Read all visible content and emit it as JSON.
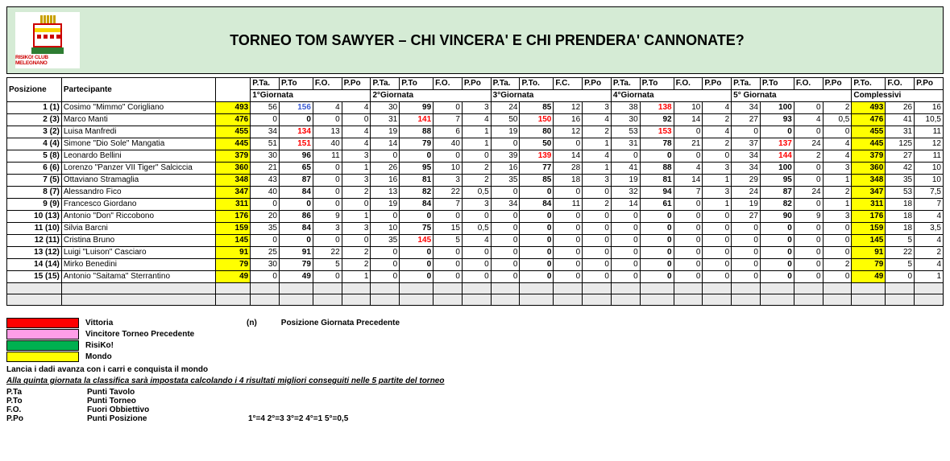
{
  "header": {
    "logo_text": "RISIKO! CLUB MELEGNANO",
    "title": "TORNEO TOM SAWYER – CHI VINCERA' E CHI PRENDERA' CANNONATE?"
  },
  "table": {
    "headers": {
      "posizione": "Posizione",
      "partecipante": "Partecipante",
      "pta": "P.Ta.",
      "pto": "P.To",
      "pto_dot": "P.To.",
      "fo": "F.O.",
      "fc": "F.C.",
      "ppo": "P.Po"
    },
    "groups": [
      "1°Giornata",
      "2°Giornata",
      "3°Giornata",
      "4°Giornata",
      "5° Giornata",
      "Complessivi"
    ],
    "rows": [
      {
        "pos": "1 (1)",
        "name": "Cosimo \"Mimmo\" Corigliano",
        "pta": "493",
        "g1": [
          "56",
          "156",
          "4",
          "4"
        ],
        "g1pto_cls": "blue",
        "g2": [
          "30",
          "99",
          "0",
          "3"
        ],
        "g3": [
          "24",
          "85",
          "12",
          "3"
        ],
        "g4": [
          "38",
          "138",
          "10",
          "4"
        ],
        "g4pto_cls": "red",
        "g5": [
          "34",
          "100",
          "0",
          "2"
        ],
        "tot": [
          "493",
          "26",
          "16"
        ]
      },
      {
        "pos": "2 (3)",
        "name": "Marco Manti",
        "pta": "476",
        "g1": [
          "0",
          "0",
          "0",
          "0"
        ],
        "g2": [
          "31",
          "141",
          "7",
          "4"
        ],
        "g2pto_cls": "red",
        "g3": [
          "50",
          "150",
          "16",
          "4"
        ],
        "g3pto_cls": "red",
        "g4": [
          "30",
          "92",
          "14",
          "2"
        ],
        "g5": [
          "27",
          "93",
          "4",
          "0,5"
        ],
        "tot": [
          "476",
          "41",
          "10,5"
        ]
      },
      {
        "pos": "3 (2)",
        "name": "Luisa Manfredi",
        "pta": "455",
        "g1": [
          "34",
          "134",
          "13",
          "4"
        ],
        "g1pto_cls": "red",
        "g2": [
          "19",
          "88",
          "6",
          "1"
        ],
        "g3": [
          "19",
          "80",
          "12",
          "2"
        ],
        "g4": [
          "53",
          "153",
          "0",
          "4"
        ],
        "g4pto_cls": "red",
        "g5": [
          "0",
          "0",
          "0",
          "0"
        ],
        "tot": [
          "455",
          "31",
          "11"
        ]
      },
      {
        "pos": "4 (4)",
        "name": "Simone \"Dio Sole\" Mangatia",
        "pta": "445",
        "g1": [
          "51",
          "151",
          "40",
          "4"
        ],
        "g1pto_cls": "red",
        "g2": [
          "14",
          "79",
          "40",
          "1"
        ],
        "g3": [
          "0",
          "50",
          "0",
          "1"
        ],
        "g4": [
          "31",
          "78",
          "21",
          "2"
        ],
        "g5": [
          "37",
          "137",
          "24",
          "4"
        ],
        "g5pto_cls": "red",
        "tot": [
          "445",
          "125",
          "12"
        ]
      },
      {
        "pos": "5 (8)",
        "name": "Leonardo Bellini",
        "pta": "379",
        "g1": [
          "30",
          "96",
          "11",
          "3"
        ],
        "g2": [
          "0",
          "0",
          "0",
          "0"
        ],
        "g3": [
          "39",
          "139",
          "14",
          "4"
        ],
        "g3pto_cls": "red",
        "g4": [
          "0",
          "0",
          "0",
          "0"
        ],
        "g5": [
          "34",
          "144",
          "2",
          "4"
        ],
        "g5pto_cls": "red",
        "tot": [
          "379",
          "27",
          "11"
        ]
      },
      {
        "pos": "6 (6)",
        "name": "Lorenzo \"Panzer VII Tiger\" Salciccia",
        "pta": "360",
        "g1": [
          "21",
          "65",
          "0",
          "1"
        ],
        "g2": [
          "26",
          "95",
          "10",
          "2"
        ],
        "g3": [
          "16",
          "77",
          "28",
          "1"
        ],
        "g4": [
          "41",
          "88",
          "4",
          "3"
        ],
        "g5": [
          "34",
          "100",
          "0",
          "3"
        ],
        "tot": [
          "360",
          "42",
          "10"
        ]
      },
      {
        "pos": "7 (5)",
        "name": "Ottaviano Stramaglia",
        "pta": "348",
        "g1": [
          "43",
          "87",
          "0",
          "3"
        ],
        "g2": [
          "16",
          "81",
          "3",
          "2"
        ],
        "g3": [
          "35",
          "85",
          "18",
          "3"
        ],
        "g4": [
          "19",
          "81",
          "14",
          "1"
        ],
        "g5": [
          "29",
          "95",
          "0",
          "1"
        ],
        "tot": [
          "348",
          "35",
          "10"
        ]
      },
      {
        "pos": "8 (7)",
        "name": "Alessandro Fico",
        "pta": "347",
        "g1": [
          "40",
          "84",
          "0",
          "2"
        ],
        "g2": [
          "13",
          "82",
          "22",
          "0,5"
        ],
        "g3": [
          "0",
          "0",
          "0",
          "0"
        ],
        "g4": [
          "32",
          "94",
          "7",
          "3"
        ],
        "g5": [
          "24",
          "87",
          "24",
          "2"
        ],
        "tot": [
          "347",
          "53",
          "7,5"
        ]
      },
      {
        "pos": "9 (9)",
        "name": "Francesco Giordano",
        "pta": "311",
        "g1": [
          "0",
          "0",
          "0",
          "0"
        ],
        "g2": [
          "19",
          "84",
          "7",
          "3"
        ],
        "g3": [
          "34",
          "84",
          "11",
          "2"
        ],
        "g4": [
          "14",
          "61",
          "0",
          "1"
        ],
        "g5": [
          "19",
          "82",
          "0",
          "1"
        ],
        "tot": [
          "311",
          "18",
          "7"
        ]
      },
      {
        "pos": "10 (13)",
        "name": "Antonio \"Don\" Riccobono",
        "pta": "176",
        "g1": [
          "20",
          "86",
          "9",
          "1"
        ],
        "g2": [
          "0",
          "0",
          "0",
          "0"
        ],
        "g3": [
          "0",
          "0",
          "0",
          "0"
        ],
        "g4": [
          "0",
          "0",
          "0",
          "0"
        ],
        "g5": [
          "27",
          "90",
          "9",
          "3"
        ],
        "tot": [
          "176",
          "18",
          "4"
        ]
      },
      {
        "pos": "11 (10)",
        "name": "Silvia Barcni",
        "pta": "159",
        "g1": [
          "35",
          "84",
          "3",
          "3"
        ],
        "g2": [
          "10",
          "75",
          "15",
          "0,5"
        ],
        "g3": [
          "0",
          "0",
          "0",
          "0"
        ],
        "g4": [
          "0",
          "0",
          "0",
          "0"
        ],
        "g5": [
          "0",
          "0",
          "0",
          "0"
        ],
        "tot": [
          "159",
          "18",
          "3,5"
        ]
      },
      {
        "pos": "12 (11)",
        "name": "Cristina Bruno",
        "pta": "145",
        "g1": [
          "0",
          "0",
          "0",
          "0"
        ],
        "g2": [
          "35",
          "145",
          "5",
          "4"
        ],
        "g2pto_cls": "red",
        "g3": [
          "0",
          "0",
          "0",
          "0"
        ],
        "g4": [
          "0",
          "0",
          "0",
          "0"
        ],
        "g5": [
          "0",
          "0",
          "0",
          "0"
        ],
        "tot": [
          "145",
          "5",
          "4"
        ]
      },
      {
        "pos": "13 (12)",
        "name": "Luigi \"Luison\" Casciaro",
        "pta": "91",
        "g1": [
          "25",
          "91",
          "22",
          "2"
        ],
        "g2": [
          "0",
          "0",
          "0",
          "0"
        ],
        "g3": [
          "0",
          "0",
          "0",
          "0"
        ],
        "g4": [
          "0",
          "0",
          "0",
          "0"
        ],
        "g5": [
          "0",
          "0",
          "0",
          "0"
        ],
        "tot": [
          "91",
          "22",
          "2"
        ]
      },
      {
        "pos": "14 (14)",
        "name": "Mirko Benedini",
        "pta": "79",
        "g1": [
          "30",
          "79",
          "5",
          "2"
        ],
        "g2": [
          "0",
          "0",
          "0",
          "0"
        ],
        "g3": [
          "0",
          "0",
          "0",
          "0"
        ],
        "g4": [
          "0",
          "0",
          "0",
          "0"
        ],
        "g5": [
          "0",
          "0",
          "0",
          "2"
        ],
        "tot": [
          "79",
          "5",
          "4"
        ]
      },
      {
        "pos": "15 (15)",
        "name": "Antonio \"Saitama\" Sterrantino",
        "pta": "49",
        "g1": [
          "0",
          "49",
          "0",
          "1"
        ],
        "g2": [
          "0",
          "0",
          "0",
          "0"
        ],
        "g3": [
          "0",
          "0",
          "0",
          "0"
        ],
        "g4": [
          "0",
          "0",
          "0",
          "0"
        ],
        "g5": [
          "0",
          "0",
          "0",
          "0"
        ],
        "tot": [
          "49",
          "0",
          "1"
        ]
      }
    ]
  },
  "legend": {
    "items": [
      {
        "color": "sw-red",
        "label": "Vittoria"
      },
      {
        "color": "sw-pink",
        "label": "Vincitore Torneo Precedente"
      },
      {
        "color": "sw-green",
        "label": "RisiKo!"
      },
      {
        "color": "sw-yellow",
        "label": "Mondo"
      }
    ],
    "n_key": "(n)",
    "n_label": "Posizione Giornata Precedente"
  },
  "notes": {
    "line1": "Lancia i dadi avanza con i carri e conquista il mondo",
    "line2": "Alla quinta giornata la classifica sarà impostata calcolando i 4 risultati migliori conseguiti nelle 5 partite del torneo",
    "abbr": [
      {
        "k": "P.Ta",
        "v": "Punti Tavolo"
      },
      {
        "k": "P.To",
        "v": "Punti Torneo"
      },
      {
        "k": "F.O.",
        "v": "Fuori Obbiettivo"
      },
      {
        "k": "P.Po",
        "v": "Punti Posizione"
      }
    ],
    "scoring": "1°=4   2°=3   3°=2   4°=1   5°=0,5"
  }
}
